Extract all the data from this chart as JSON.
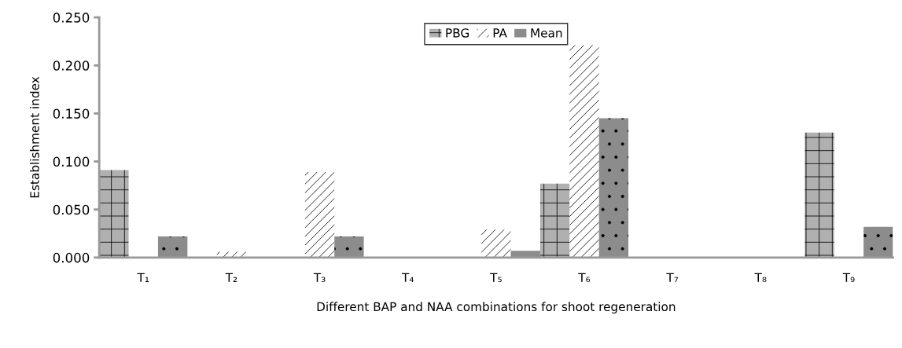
{
  "chart_data": {
    "type": "bar",
    "xlabel": "Different BAP and NAA combinations for shoot regeneration",
    "ylabel": "Establishment index",
    "categories": [
      "T₁",
      "T₂",
      "T₃",
      "T₄",
      "T₅",
      "T₆",
      "T₇",
      "T₈",
      "T₉"
    ],
    "series": [
      {
        "name": "PBG",
        "color": "#b0b0b0",
        "values": [
          0.091,
          null,
          null,
          null,
          null,
          0.077,
          null,
          null,
          0.13
        ]
      },
      {
        "name": "PA",
        "color": "#ffffff",
        "values": [
          null,
          0.006,
          0.089,
          null,
          0.029,
          0.221,
          null,
          null,
          null
        ]
      },
      {
        "name": "Mean",
        "color": "#8c8c8c",
        "values": [
          0.022,
          null,
          0.022,
          null,
          0.007,
          0.145,
          null,
          null,
          0.032
        ]
      }
    ],
    "ylim": [
      0,
      0.25
    ],
    "yticks": [
      {
        "value": 0,
        "label": "0.000"
      },
      {
        "value": 0.05,
        "label": "0.050"
      },
      {
        "value": 0.1,
        "label": "0.100"
      },
      {
        "value": 0.15,
        "label": "0.150"
      },
      {
        "value": 0.2,
        "label": "0.200"
      },
      {
        "value": 0.25,
        "label": "0.250"
      }
    ],
    "legend": "top",
    "grid": false
  }
}
